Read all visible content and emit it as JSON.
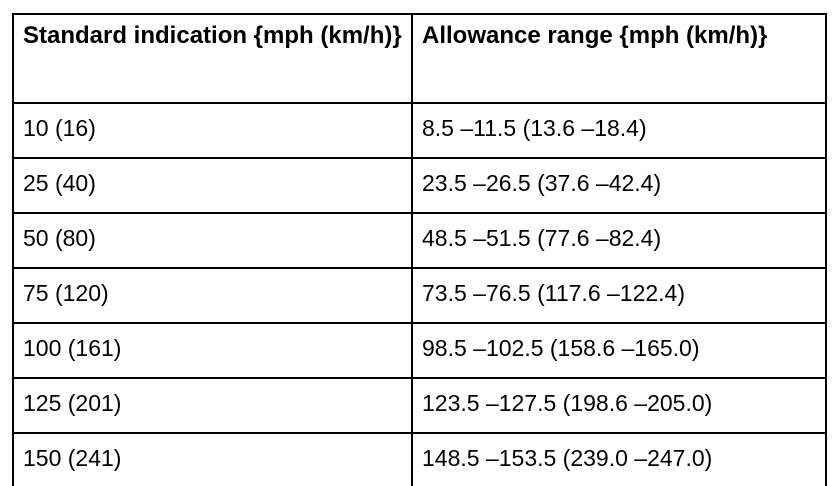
{
  "table": {
    "columns": [
      {
        "label": "Standard indication {mph (km/h)}"
      },
      {
        "label": "Allowance range {mph (km/h)}"
      }
    ],
    "rows": [
      {
        "standard": "10 (16)",
        "allowance": "8.5 –11.5 (13.6 –18.4)"
      },
      {
        "standard": "25 (40)",
        "allowance": "23.5 –26.5 (37.6 –42.4)"
      },
      {
        "standard": "50 (80)",
        "allowance": "48.5 –51.5 (77.6 –82.4)"
      },
      {
        "standard": "75 (120)",
        "allowance": "73.5 –76.5 (117.6 –122.4)"
      },
      {
        "standard": "100 (161)",
        "allowance": "98.5 –102.5 (158.6 –165.0)"
      },
      {
        "standard": "125 (201)",
        "allowance": "123.5 –127.5 (198.6 –205.0)"
      },
      {
        "standard": "150 (241)",
        "allowance": "148.5 –153.5 (239.0 –247.0)"
      }
    ]
  }
}
